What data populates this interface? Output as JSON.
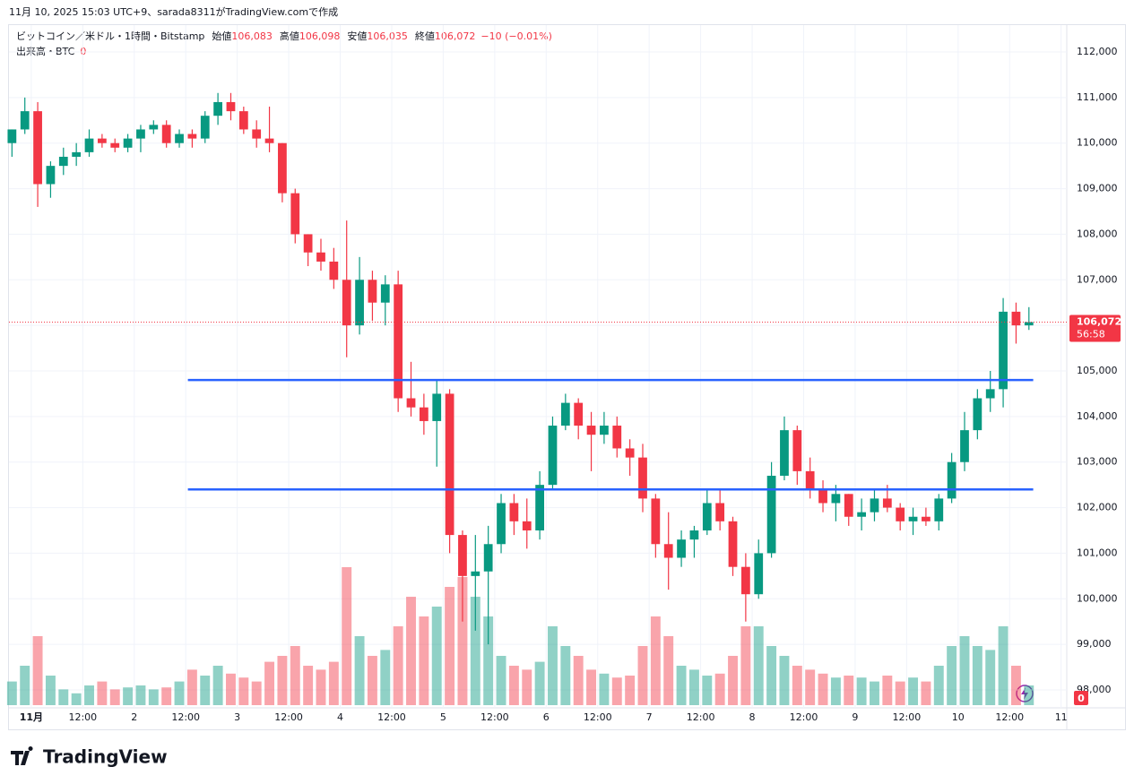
{
  "caption": "11月 10, 2025 15:03 UTC+9、sarada8311がTradingView.comで作成",
  "logo": "TradingView",
  "chart_data": {
    "type": "candlestick",
    "symbol": "ビットコイン／米ドル・1時間・Bitstamp",
    "legend_items": [
      {
        "label": "始値",
        "value": "106,083"
      },
      {
        "label": "高値",
        "value": "106,098"
      },
      {
        "label": "安値",
        "value": "106,035"
      },
      {
        "label": "終値",
        "value": "106,072"
      }
    ],
    "change": "−10 (−0.01%)",
    "volume_label": "出来高・BTC",
    "volume_value": "0",
    "up_color": "#089981",
    "down_color": "#f23645",
    "grid": true,
    "xlim": [
      -5.2,
      240.9
    ],
    "ylim": [
      98000,
      112000
    ],
    "xticks": [
      {
        "value": 0,
        "label": "11月"
      },
      {
        "value": 12,
        "label": "12:00"
      },
      {
        "value": 24,
        "label": "2"
      },
      {
        "value": 36,
        "label": "12:00"
      },
      {
        "value": 48,
        "label": "3"
      },
      {
        "value": 60,
        "label": "12:00"
      },
      {
        "value": 72,
        "label": "4"
      },
      {
        "value": 84,
        "label": "12:00"
      },
      {
        "value": 96,
        "label": "5"
      },
      {
        "value": 108,
        "label": "12:00"
      },
      {
        "value": 120,
        "label": "6"
      },
      {
        "value": 132,
        "label": "12:00"
      },
      {
        "value": 144,
        "label": "7"
      },
      {
        "value": 156,
        "label": "12:00"
      },
      {
        "value": 168,
        "label": "8"
      },
      {
        "value": 180,
        "label": "12:00"
      },
      {
        "value": 192,
        "label": "9"
      },
      {
        "value": 204,
        "label": "12:00"
      },
      {
        "value": 216,
        "label": "10"
      },
      {
        "value": 228,
        "label": "12:00"
      },
      {
        "value": 240,
        "label": "11"
      }
    ],
    "yticks": [
      {
        "value": 98000,
        "label": "98,000"
      },
      {
        "value": 99000,
        "label": "99,000"
      },
      {
        "value": 100000,
        "label": "100,000"
      },
      {
        "value": 101000,
        "label": "101,000"
      },
      {
        "value": 102000,
        "label": "102,000"
      },
      {
        "value": 103000,
        "label": "103,000"
      },
      {
        "value": 104000,
        "label": "104,000"
      },
      {
        "value": 105000,
        "label": "105,000"
      },
      {
        "value": 106000,
        "label": "106,000"
      },
      {
        "value": 107000,
        "label": "107,000"
      },
      {
        "value": 108000,
        "label": "108,000"
      },
      {
        "value": 109000,
        "label": "109,000"
      },
      {
        "value": 110000,
        "label": "110,000"
      },
      {
        "value": 111000,
        "label": "111,000"
      },
      {
        "value": 112000,
        "label": "112,000"
      }
    ],
    "last_price": {
      "value": 106072,
      "label": "106,072"
    },
    "countdown": "56:58",
    "hlines": [
      {
        "value": 104800,
        "x": [
          36.5,
          233.5
        ],
        "color": "#2962ff"
      },
      {
        "value": 102400,
        "x": [
          36.5,
          233.5
        ],
        "color": "#2962ff"
      }
    ],
    "x": [
      -6,
      -3,
      0,
      3,
      6,
      9,
      12,
      15,
      18,
      21,
      24,
      27,
      30,
      33,
      36,
      39,
      42,
      45,
      48,
      51,
      54,
      57,
      60,
      63,
      66,
      69,
      72,
      75,
      78,
      81,
      84,
      87,
      90,
      93,
      96,
      99,
      102,
      105,
      108,
      111,
      114,
      117,
      120,
      123,
      126,
      129,
      132,
      135,
      138,
      141,
      144,
      147,
      150,
      153,
      156,
      159,
      162,
      165,
      168,
      171,
      174,
      177,
      180,
      183,
      186,
      189,
      192,
      195,
      198,
      201,
      204,
      207,
      210,
      213,
      216,
      219,
      222,
      225,
      228,
      231
    ],
    "open": [
      110000,
      110300,
      110700,
      109100,
      109500,
      109700,
      109800,
      110100,
      110000,
      109900,
      110100,
      110300,
      110400,
      110000,
      110200,
      110100,
      110600,
      110900,
      110700,
      110300,
      110100,
      110000,
      108900,
      108000,
      107600,
      107400,
      107000,
      106000,
      107000,
      106500,
      106900,
      104400,
      104200,
      103900,
      104500,
      101400,
      100500,
      100600,
      101200,
      102100,
      101700,
      101500,
      102500,
      103800,
      104300,
      103800,
      103600,
      103800,
      103300,
      103100,
      102200,
      101200,
      100900,
      101300,
      101500,
      102100,
      101700,
      100700,
      100100,
      101000,
      102700,
      103700,
      102800,
      102400,
      102100,
      102300,
      101800,
      101900,
      102200,
      102000,
      101700,
      101800,
      101700,
      102200,
      103000,
      103700,
      104400,
      104600,
      106300,
      106000
    ],
    "high": [
      110300,
      111000,
      110900,
      109600,
      109900,
      110000,
      110300,
      110200,
      110100,
      110200,
      110400,
      110500,
      110500,
      110300,
      110300,
      110700,
      111100,
      111100,
      110800,
      110500,
      110800,
      110000,
      109000,
      108000,
      107900,
      107700,
      108300,
      107500,
      107200,
      107100,
      107200,
      105200,
      104500,
      104800,
      104600,
      101500,
      101400,
      101600,
      102300,
      102300,
      102200,
      102800,
      104000,
      104500,
      104400,
      104100,
      104100,
      104000,
      103500,
      103400,
      102300,
      101900,
      101500,
      101600,
      102400,
      102400,
      101800,
      101000,
      101300,
      103000,
      104000,
      103800,
      103100,
      102600,
      102500,
      102300,
      102200,
      102400,
      102500,
      102100,
      102000,
      102000,
      102300,
      103200,
      104100,
      104600,
      105000,
      106600,
      106500,
      106400
    ],
    "low": [
      109700,
      110200,
      108600,
      108800,
      109300,
      109500,
      109700,
      109900,
      109800,
      109800,
      109800,
      110200,
      109900,
      109900,
      109900,
      110000,
      110400,
      110500,
      110200,
      109900,
      109800,
      108700,
      107800,
      107300,
      107200,
      106800,
      105300,
      105800,
      106100,
      106000,
      104100,
      104000,
      103600,
      102900,
      101000,
      99500,
      99300,
      99000,
      101000,
      101400,
      101100,
      101300,
      102400,
      103700,
      103500,
      102800,
      103400,
      103100,
      102700,
      101900,
      100900,
      100200,
      100700,
      100900,
      101400,
      101500,
      100500,
      99500,
      100000,
      100900,
      102600,
      102500,
      102200,
      101900,
      101700,
      101600,
      101500,
      101700,
      101900,
      101500,
      101400,
      101600,
      101500,
      102100,
      102800,
      103500,
      104100,
      104200,
      105600,
      105900
    ],
    "close": [
      110300,
      110700,
      109100,
      109500,
      109700,
      109800,
      110100,
      110000,
      109900,
      110100,
      110300,
      110400,
      110000,
      110200,
      110100,
      110600,
      110900,
      110700,
      110300,
      110100,
      110000,
      108900,
      108000,
      107600,
      107400,
      107000,
      106000,
      107000,
      106500,
      106900,
      104400,
      104200,
      103900,
      104500,
      101400,
      100500,
      100600,
      101200,
      102100,
      101700,
      101500,
      102500,
      103800,
      104300,
      103800,
      103600,
      103800,
      103300,
      103100,
      102200,
      101200,
      100900,
      101300,
      101500,
      102100,
      101700,
      100700,
      100100,
      101000,
      102700,
      103700,
      102800,
      102400,
      102100,
      102300,
      101800,
      101900,
      102200,
      102000,
      101700,
      101800,
      101700,
      102200,
      103000,
      103700,
      104400,
      104600,
      106300,
      106000,
      106072
    ],
    "volume": [
      12,
      20,
      35,
      15,
      8,
      6,
      10,
      12,
      8,
      9,
      10,
      8,
      9,
      12,
      18,
      15,
      20,
      16,
      14,
      12,
      22,
      25,
      30,
      20,
      18,
      22,
      70,
      35,
      25,
      28,
      40,
      55,
      45,
      50,
      60,
      65,
      55,
      45,
      25,
      20,
      18,
      22,
      40,
      30,
      25,
      18,
      16,
      14,
      15,
      30,
      45,
      35,
      20,
      18,
      15,
      16,
      25,
      40,
      40,
      30,
      25,
      20,
      18,
      16,
      14,
      15,
      14,
      12,
      15,
      12,
      14,
      12,
      20,
      30,
      35,
      30,
      28,
      40,
      20,
      10
    ]
  }
}
